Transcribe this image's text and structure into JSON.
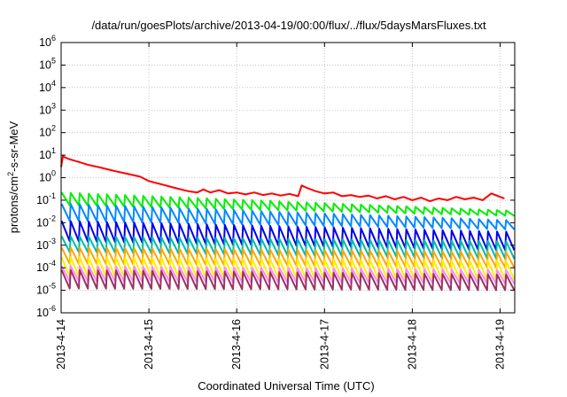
{
  "chart_data": {
    "type": "line",
    "title": "/data/run/goesPlots/archive/2013-04-19/00:00/flux/../flux/5daysMarsFluxes.txt",
    "xlabel": "Coordinated Universal Time (UTC)",
    "ylabel": "protons/cm²-s-sr-MeV",
    "ylabel_parts": {
      "pre": "protons/cm",
      "sup": "2",
      "post": "-s-sr-MeV"
    },
    "yscale": "log",
    "ylim": [
      1e-06,
      1000000.0
    ],
    "xlim": [
      "2013-4-14",
      "2013-4-19 04:00"
    ],
    "grid": true,
    "x_ticks": [
      "2013-4-14",
      "2013-4-15",
      "2013-4-16",
      "2013-4-17",
      "2013-4-18",
      "2013-4-19"
    ],
    "y_ticks": [
      {
        "base": "10",
        "exp": "-6"
      },
      {
        "base": "10",
        "exp": "-5"
      },
      {
        "base": "10",
        "exp": "-4"
      },
      {
        "base": "10",
        "exp": "-3"
      },
      {
        "base": "10",
        "exp": "-2"
      },
      {
        "base": "10",
        "exp": "-1"
      },
      {
        "base": "10",
        "exp": "0"
      },
      {
        "base": "10",
        "exp": "1"
      },
      {
        "base": "10",
        "exp": "2"
      },
      {
        "base": "10",
        "exp": "3"
      },
      {
        "base": "10",
        "exp": "4"
      },
      {
        "base": "10",
        "exp": "5"
      },
      {
        "base": "10",
        "exp": "6"
      }
    ],
    "series": [
      {
        "color": "#ff0000",
        "x": [
          0,
          0.02,
          0.04,
          0.1,
          0.2,
          0.3,
          0.45,
          0.6,
          0.75,
          0.9,
          1.0,
          1.15,
          1.3,
          1.45,
          1.55,
          1.62,
          1.7,
          1.8,
          1.9,
          2.0,
          2.1,
          2.2,
          2.3,
          2.4,
          2.5,
          2.6,
          2.7,
          2.74,
          2.8,
          2.9,
          3.0,
          3.1,
          3.2,
          3.3,
          3.4,
          3.5,
          3.6,
          3.7,
          3.8,
          3.9,
          4.0,
          4.1,
          4.2,
          4.3,
          4.4,
          4.5,
          4.6,
          4.7,
          4.8,
          4.9,
          5.0,
          5.05
        ],
        "y": [
          3,
          9,
          8,
          6.5,
          5,
          3.8,
          2.8,
          2,
          1.5,
          1.1,
          0.7,
          0.5,
          0.35,
          0.25,
          0.22,
          0.3,
          0.22,
          0.28,
          0.2,
          0.22,
          0.18,
          0.22,
          0.17,
          0.2,
          0.16,
          0.19,
          0.15,
          0.45,
          0.35,
          0.25,
          0.2,
          0.22,
          0.15,
          0.17,
          0.14,
          0.16,
          0.12,
          0.15,
          0.11,
          0.14,
          0.1,
          0.13,
          0.09,
          0.12,
          0.1,
          0.14,
          0.11,
          0.13,
          0.1,
          0.2,
          0.14,
          0.12
        ]
      },
      {
        "color": "#00ee00",
        "pattern": "sawtooth",
        "start_high": 0.22,
        "end_high": 0.035,
        "start_low": 0.06,
        "end_low": 0.02,
        "cycles": 50
      },
      {
        "color": "#0088ff",
        "pattern": "sawtooth",
        "start_high": 0.07,
        "end_high": 0.013,
        "start_low": 0.012,
        "end_low": 0.005,
        "cycles": 50
      },
      {
        "color": "#0000ee",
        "pattern": "sawtooth",
        "start_high": 0.012,
        "end_high": 0.004,
        "start_low": 0.0015,
        "end_low": 0.0006,
        "cycles": 50
      },
      {
        "color": "#00bbaa",
        "pattern": "sawtooth",
        "start_high": 0.0025,
        "end_high": 0.0015,
        "start_low": 0.0005,
        "end_low": 0.00025,
        "cycles": 50
      },
      {
        "color": "#ffa500",
        "pattern": "sawtooth",
        "start_high": 0.0008,
        "end_high": 0.0005,
        "start_low": 0.00015,
        "end_low": 0.0001,
        "cycles": 50
      },
      {
        "color": "#ffee00",
        "pattern": "sawtooth",
        "start_high": 0.0003,
        "end_high": 0.0002,
        "start_low": 4e-05,
        "end_low": 3e-05,
        "cycles": 50
      },
      {
        "color": "#ff88ff",
        "pattern": "sawtooth",
        "start_high": 0.00012,
        "end_high": 8e-05,
        "start_low": 2.5e-05,
        "end_low": 2e-05,
        "cycles": 50
      },
      {
        "color": "#993366",
        "pattern": "sawtooth",
        "start_high": 8e-05,
        "end_high": 5e-05,
        "start_low": 1.2e-05,
        "end_low": 1e-05,
        "cycles": 50
      }
    ]
  }
}
